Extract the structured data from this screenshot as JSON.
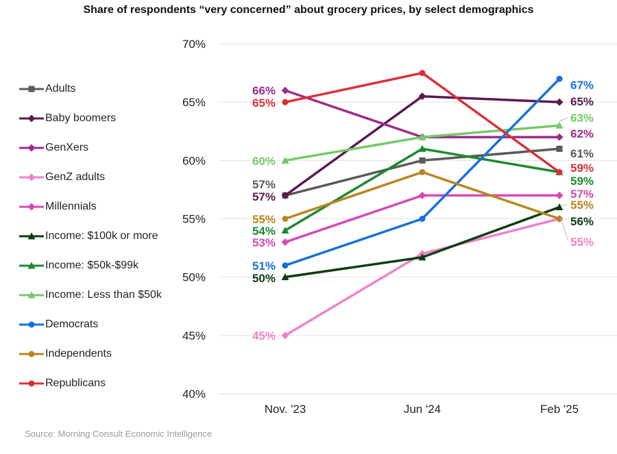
{
  "chart_data": {
    "type": "line",
    "title": "Share of respondents “very concerned” about grocery prices, by select demographics",
    "categories": [
      "Nov. '23",
      "Jun '24",
      "Feb '25"
    ],
    "y_ticks": [
      "40%",
      "45%",
      "50%",
      "55%",
      "60%",
      "65%",
      "70%"
    ],
    "ylim": [
      40,
      70
    ],
    "grid": "horizontal",
    "legend_position": "left",
    "series": [
      {
        "name": "Adults",
        "color": "#5a5a5a",
        "marker": "square",
        "values": [
          57,
          60,
          61
        ],
        "labels": [
          "57%",
          "",
          "61%"
        ]
      },
      {
        "name": "Baby boomers",
        "color": "#5c1a4e",
        "marker": "diamond",
        "values": [
          57,
          65.5,
          65
        ],
        "labels": [
          "57%",
          "",
          "65%"
        ]
      },
      {
        "name": "GenXers",
        "color": "#9b2c8c",
        "marker": "diamond",
        "values": [
          66,
          62,
          62
        ],
        "labels": [
          "66%",
          "",
          "62%"
        ]
      },
      {
        "name": "GenZ adults",
        "color": "#ee82c9",
        "marker": "diamond",
        "values": [
          45,
          52,
          55
        ],
        "labels": [
          "45%",
          "",
          "55%"
        ]
      },
      {
        "name": "Millennials",
        "color": "#d64ab6",
        "marker": "diamond",
        "values": [
          53,
          57,
          57
        ],
        "labels": [
          "53%",
          "",
          "57%"
        ]
      },
      {
        "name": "Income: $100k or more",
        "color": "#0d3d12",
        "marker": "triangle",
        "values": [
          50,
          51.7,
          56
        ],
        "labels": [
          "50%",
          "",
          "56%"
        ]
      },
      {
        "name": "Income: $50k-$99k",
        "color": "#1c8a2c",
        "marker": "triangle",
        "values": [
          54,
          61,
          59
        ],
        "labels": [
          "54%",
          "",
          "59%"
        ]
      },
      {
        "name": "Income: Less than $50k",
        "color": "#74c96a",
        "marker": "triangle",
        "values": [
          60,
          62,
          63
        ],
        "labels": [
          "60%",
          "",
          "63%"
        ]
      },
      {
        "name": "Democrats",
        "color": "#1670d8",
        "marker": "circle",
        "values": [
          51,
          55,
          67
        ],
        "labels": [
          "51%",
          "",
          "67%"
        ]
      },
      {
        "name": "Independents",
        "color": "#b8861e",
        "marker": "circle",
        "values": [
          55,
          59,
          55
        ],
        "labels": [
          "55%",
          "",
          "55%"
        ]
      },
      {
        "name": "Republicans",
        "color": "#d83138",
        "marker": "circle",
        "values": [
          65,
          67.5,
          59
        ],
        "labels": [
          "65%",
          "",
          "59%"
        ]
      }
    ]
  },
  "source": "Source: Morning Consult Economic Intelligence"
}
